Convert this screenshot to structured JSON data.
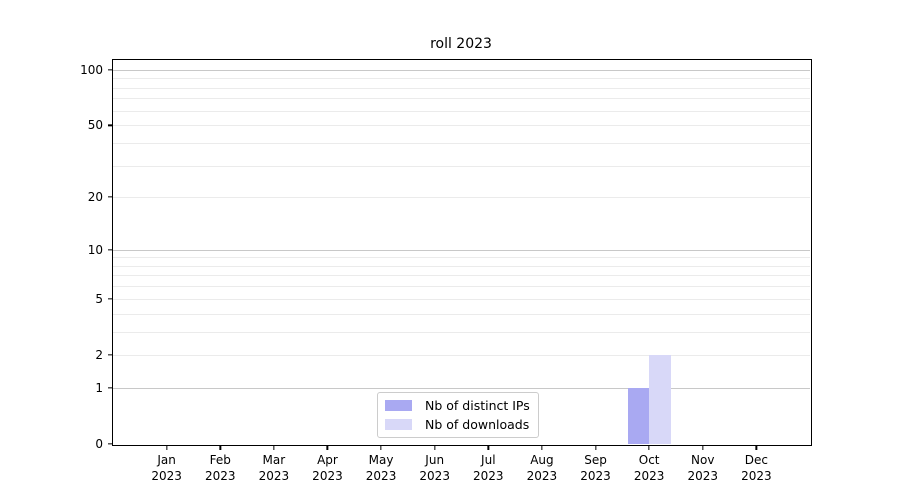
{
  "chart_data": {
    "type": "bar",
    "title": "roll 2023",
    "categories": [
      "Jan 2023",
      "Feb 2023",
      "Mar 2023",
      "Apr 2023",
      "May 2023",
      "Jun 2023",
      "Jul 2023",
      "Aug 2023",
      "Sep 2023",
      "Oct 2023",
      "Nov 2023",
      "Dec 2023"
    ],
    "series": [
      {
        "name": "Nb of distinct IPs",
        "color": "#a9a9f2",
        "values": [
          0,
          0,
          0,
          0,
          0,
          0,
          0,
          0,
          0,
          1,
          0,
          0
        ]
      },
      {
        "name": "Nb of downloads",
        "color": "#d8d8f8",
        "values": [
          0,
          0,
          0,
          0,
          0,
          0,
          0,
          0,
          0,
          2,
          0,
          0
        ]
      }
    ],
    "xlabel": "",
    "ylabel": "",
    "yscale": "log1p",
    "ylim": [
      0,
      113
    ],
    "y_ticks": [
      0,
      1,
      2,
      5,
      10,
      20,
      50,
      100
    ],
    "major_gridlines": [
      1,
      10,
      100
    ],
    "minor_gridlines": [
      2,
      3,
      4,
      5,
      6,
      7,
      8,
      9,
      20,
      30,
      40,
      50,
      60,
      70,
      80,
      90
    ],
    "grid": "horizontal",
    "legend_position": "lower center inside"
  },
  "colors": {
    "background": "#ffffff",
    "axis": "#000000",
    "major_grid": "#c8c8c8",
    "minor_grid": "#ebebeb",
    "legend_border": "#cccccc",
    "bar_distinct_ips": "#a9a9f2",
    "bar_downloads": "#d8d8f8"
  },
  "legend": {
    "items": [
      {
        "label": "Nb of distinct IPs",
        "color": "#a9a9f2"
      },
      {
        "label": "Nb of downloads",
        "color": "#d8d8f8"
      }
    ]
  }
}
